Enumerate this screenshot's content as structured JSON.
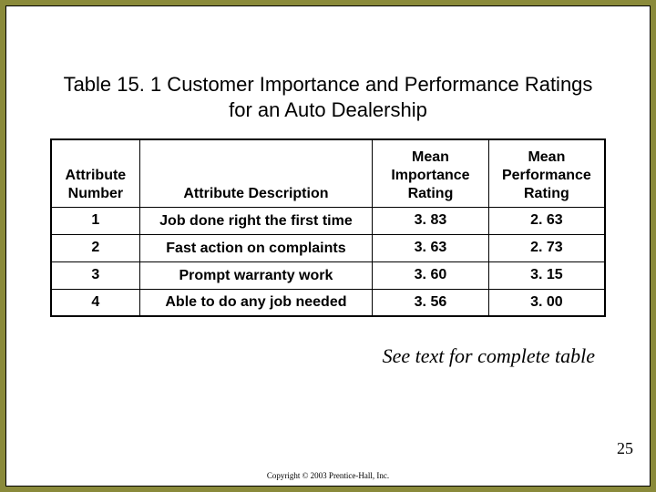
{
  "title": "Table 15. 1 Customer Importance and Performance Ratings for an Auto Dealership",
  "table": {
    "type": "table",
    "background_color": "#ffffff",
    "border_color": "#000000",
    "border_width": 2,
    "header_fontsize": 16,
    "cell_fontsize": 16,
    "column_widths_pct": [
      16,
      42,
      21,
      21
    ],
    "columns": [
      {
        "lines": [
          "",
          "Attribute",
          "Number"
        ],
        "align": "center"
      },
      {
        "lines": [
          "",
          "",
          "Attribute Description"
        ],
        "align": "center"
      },
      {
        "lines": [
          "Mean",
          "Importance",
          "Rating"
        ],
        "align": "center"
      },
      {
        "lines": [
          "Mean",
          "Performance",
          "Rating"
        ],
        "align": "center"
      }
    ],
    "rows": [
      {
        "num": "1",
        "desc": "Job done right the first time",
        "imp": "3. 83",
        "perf": "2. 63"
      },
      {
        "num": "2",
        "desc": "Fast action on complaints",
        "imp": "3. 63",
        "perf": "2. 73"
      },
      {
        "num": "3",
        "desc": "Prompt warranty work",
        "imp": "3. 60",
        "perf": "3. 15"
      },
      {
        "num": "4",
        "desc": "Able to do any job needed",
        "imp": "3. 56",
        "perf": "3. 00"
      }
    ]
  },
  "caption": "See text for complete table",
  "page_number": "25",
  "copyright": "Copyright © 2003 Prentice-Hall, Inc.",
  "style": {
    "page_background": "#8a8a3a",
    "slide_background": "#ffffff",
    "text_color": "#000000",
    "title_fontsize": 22,
    "caption_fontsize": 22,
    "pagenum_fontsize": 18,
    "copyright_fontsize": 9
  }
}
